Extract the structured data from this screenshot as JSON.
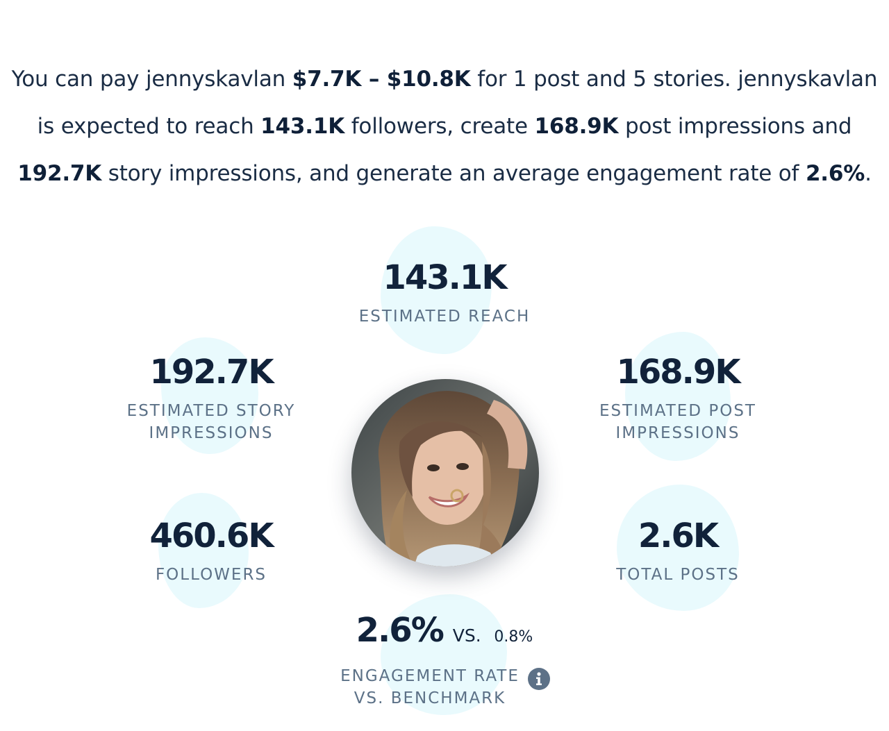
{
  "summary": {
    "t1": "You can pay jennyskavlan ",
    "price_range": "$7.7K – $10.8K",
    "t2": " for 1 post and 5 stories. jennyskavlan is expected to reach ",
    "reach": "143.1K",
    "t3": " followers, create ",
    "post_impressions": "168.9K",
    "t4": " post impressions and ",
    "story_impressions": "192.7K",
    "t5": " story impressions, and generate an average engagement rate of ",
    "engagement": "2.6%",
    "t6": "."
  },
  "stats": {
    "reach": {
      "value": "143.1K",
      "label": "ESTIMATED REACH"
    },
    "story_impressions": {
      "value": "192.7K",
      "label_line1": "ESTIMATED STORY",
      "label_line2": "IMPRESSIONS"
    },
    "post_impressions": {
      "value": "168.9K",
      "label_line1": "ESTIMATED POST",
      "label_line2": "IMPRESSIONS"
    },
    "followers": {
      "value": "460.6K",
      "label": "FOLLOWERS"
    },
    "total_posts": {
      "value": "2.6K",
      "label": "TOTAL POSTS"
    },
    "engagement": {
      "value": "2.6%",
      "vs_label": "VS.",
      "benchmark": "0.8%",
      "label_line1": "ENGAGEMENT RATE",
      "label_line2": "VS. BENCHMARK"
    }
  },
  "icons": {
    "info": "info-icon"
  },
  "colors": {
    "blob": "#e9fafd",
    "value_text": "#11223a",
    "label_text": "#5c7187",
    "info_icon_bg": "#5d7187"
  }
}
